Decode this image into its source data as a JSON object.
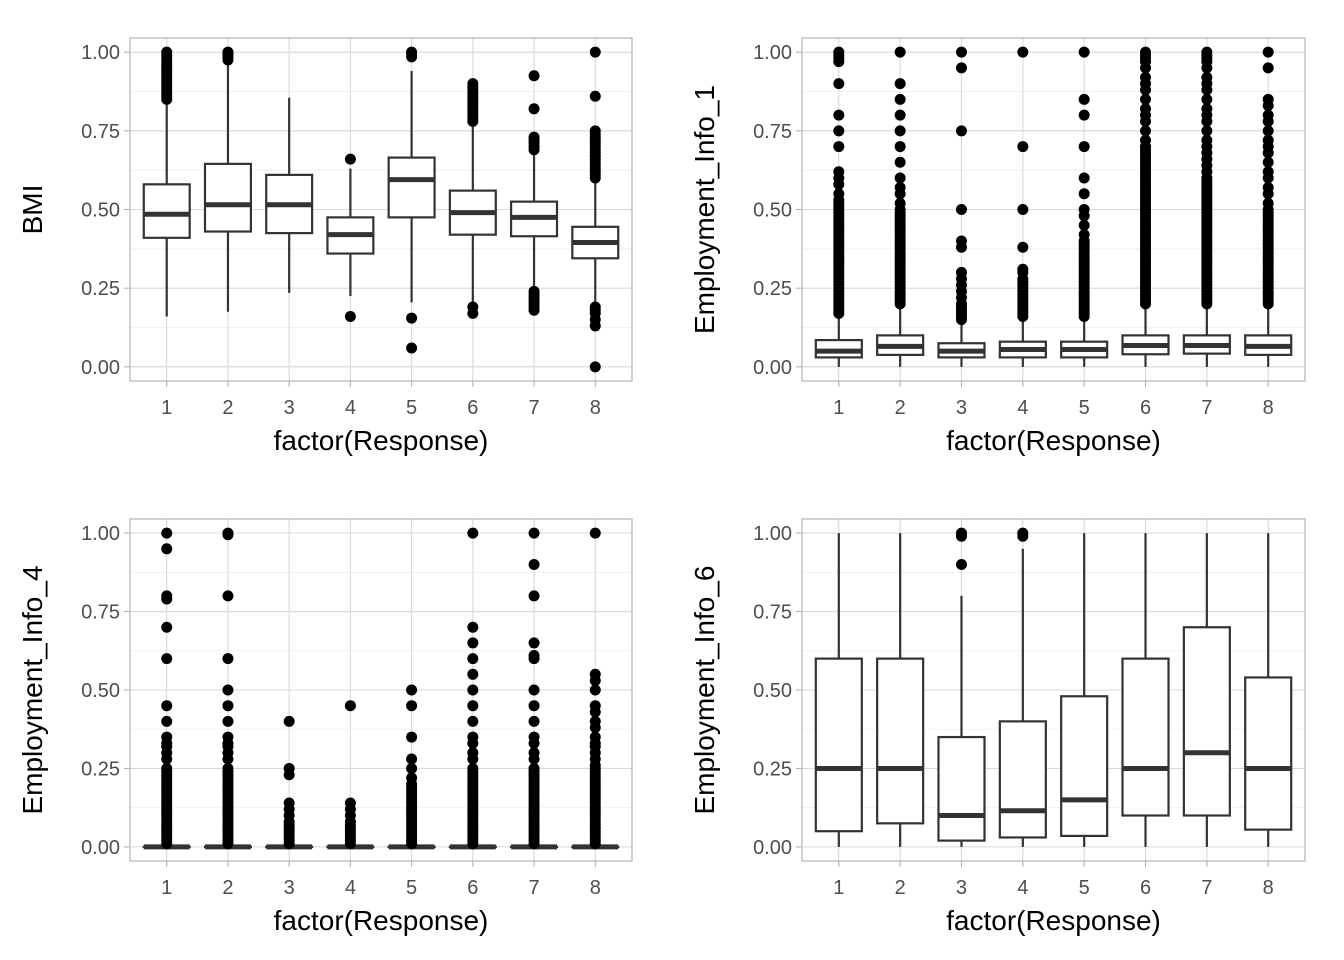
{
  "chart_data": [
    {
      "type": "box",
      "ylabel": "BMI",
      "xlabel": "factor(Response)",
      "categories": [
        "1",
        "2",
        "3",
        "4",
        "5",
        "6",
        "7",
        "8"
      ],
      "yticks": [
        "0.00",
        "0.25",
        "0.50",
        "0.75",
        "1.00"
      ],
      "ylim": [
        -0.045,
        1.045
      ],
      "grid": true,
      "boxes": [
        {
          "lower_whisker": 0.16,
          "q1": 0.41,
          "median": 0.485,
          "q3": 0.58,
          "upper_whisker": 0.84,
          "outliers": [
            0.85,
            0.86,
            0.87,
            0.88,
            0.89,
            0.9,
            0.91,
            0.92,
            0.93,
            0.94,
            0.95,
            0.96,
            0.97,
            0.98,
            0.99,
            1.0
          ]
        },
        {
          "lower_whisker": 0.175,
          "q1": 0.43,
          "median": 0.515,
          "q3": 0.645,
          "upper_whisker": 0.965,
          "outliers": [
            0.975,
            0.985,
            0.99,
            0.995,
            1.0
          ]
        },
        {
          "lower_whisker": 0.235,
          "q1": 0.425,
          "median": 0.515,
          "q3": 0.61,
          "upper_whisker": 0.855,
          "outliers": []
        },
        {
          "lower_whisker": 0.225,
          "q1": 0.36,
          "median": 0.42,
          "q3": 0.475,
          "upper_whisker": 0.63,
          "outliers": [
            0.16,
            0.66
          ]
        },
        {
          "lower_whisker": 0.205,
          "q1": 0.475,
          "median": 0.595,
          "q3": 0.665,
          "upper_whisker": 0.94,
          "outliers": [
            0.06,
            0.155,
            0.985,
            0.995,
            1.0
          ]
        },
        {
          "lower_whisker": 0.2,
          "q1": 0.42,
          "median": 0.49,
          "q3": 0.56,
          "upper_whisker": 0.765,
          "outliers": [
            0.17,
            0.19,
            0.78,
            0.79,
            0.8,
            0.81,
            0.82,
            0.83,
            0.84,
            0.85,
            0.86,
            0.87,
            0.88,
            0.89,
            0.9
          ]
        },
        {
          "lower_whisker": 0.25,
          "q1": 0.415,
          "median": 0.475,
          "q3": 0.525,
          "upper_whisker": 0.685,
          "outliers": [
            0.18,
            0.19,
            0.2,
            0.21,
            0.22,
            0.23,
            0.24,
            0.69,
            0.7,
            0.71,
            0.72,
            0.73,
            0.82,
            0.925
          ]
        },
        {
          "lower_whisker": 0.2,
          "q1": 0.345,
          "median": 0.395,
          "q3": 0.445,
          "upper_whisker": 0.595,
          "outliers": [
            0.0,
            0.13,
            0.15,
            0.17,
            0.18,
            0.19,
            0.6,
            0.61,
            0.62,
            0.63,
            0.64,
            0.65,
            0.66,
            0.67,
            0.68,
            0.69,
            0.7,
            0.71,
            0.72,
            0.73,
            0.74,
            0.75,
            0.86,
            1.0
          ]
        }
      ]
    },
    {
      "type": "box",
      "ylabel": "Employment_Info_1",
      "xlabel": "factor(Response)",
      "categories": [
        "1",
        "2",
        "3",
        "4",
        "5",
        "6",
        "7",
        "8"
      ],
      "yticks": [
        "0.00",
        "0.25",
        "0.50",
        "0.75",
        "1.00"
      ],
      "ylim": [
        -0.045,
        1.045
      ],
      "grid": true,
      "boxes": [
        {
          "lower_whisker": 0.0,
          "q1": 0.03,
          "median": 0.05,
          "q3": 0.085,
          "upper_whisker": 0.165,
          "outliers": [
            0.17,
            0.18,
            0.19,
            0.2,
            0.21,
            0.22,
            0.23,
            0.24,
            0.25,
            0.26,
            0.27,
            0.28,
            0.29,
            0.3,
            0.31,
            0.32,
            0.33,
            0.34,
            0.35,
            0.36,
            0.37,
            0.38,
            0.39,
            0.4,
            0.41,
            0.42,
            0.43,
            0.44,
            0.45,
            0.46,
            0.47,
            0.48,
            0.49,
            0.5,
            0.51,
            0.52,
            0.53,
            0.55,
            0.58,
            0.6,
            0.62,
            0.7,
            0.75,
            0.8,
            0.9,
            0.97,
            0.98,
            0.99,
            1.0
          ]
        },
        {
          "lower_whisker": 0.0,
          "q1": 0.038,
          "median": 0.065,
          "q3": 0.1,
          "upper_whisker": 0.19,
          "outliers": [
            0.2,
            0.21,
            0.22,
            0.23,
            0.24,
            0.25,
            0.26,
            0.27,
            0.28,
            0.29,
            0.3,
            0.31,
            0.32,
            0.33,
            0.34,
            0.35,
            0.36,
            0.37,
            0.38,
            0.39,
            0.4,
            0.41,
            0.42,
            0.43,
            0.44,
            0.45,
            0.46,
            0.47,
            0.48,
            0.49,
            0.5,
            0.52,
            0.55,
            0.57,
            0.6,
            0.65,
            0.7,
            0.75,
            0.8,
            0.85,
            0.9,
            1.0
          ]
        },
        {
          "lower_whisker": 0.0,
          "q1": 0.03,
          "median": 0.05,
          "q3": 0.075,
          "upper_whisker": 0.14,
          "outliers": [
            0.15,
            0.16,
            0.17,
            0.18,
            0.19,
            0.2,
            0.22,
            0.24,
            0.26,
            0.28,
            0.3,
            0.38,
            0.4,
            0.5,
            0.75,
            0.95,
            1.0
          ]
        },
        {
          "lower_whisker": 0.0,
          "q1": 0.03,
          "median": 0.055,
          "q3": 0.08,
          "upper_whisker": 0.15,
          "outliers": [
            0.16,
            0.17,
            0.18,
            0.19,
            0.2,
            0.21,
            0.22,
            0.23,
            0.24,
            0.25,
            0.26,
            0.27,
            0.28,
            0.3,
            0.31,
            0.38,
            0.5,
            0.7,
            1.0
          ]
        },
        {
          "lower_whisker": 0.0,
          "q1": 0.03,
          "median": 0.055,
          "q3": 0.08,
          "upper_whisker": 0.155,
          "outliers": [
            0.16,
            0.17,
            0.18,
            0.19,
            0.2,
            0.21,
            0.22,
            0.23,
            0.24,
            0.25,
            0.26,
            0.27,
            0.28,
            0.29,
            0.3,
            0.31,
            0.32,
            0.33,
            0.34,
            0.35,
            0.36,
            0.37,
            0.38,
            0.39,
            0.4,
            0.42,
            0.45,
            0.48,
            0.5,
            0.55,
            0.6,
            0.7,
            0.8,
            0.85,
            1.0
          ]
        },
        {
          "lower_whisker": 0.0,
          "q1": 0.04,
          "median": 0.068,
          "q3": 0.1,
          "upper_whisker": 0.19,
          "outliers": [
            0.2,
            0.21,
            0.22,
            0.23,
            0.24,
            0.25,
            0.26,
            0.27,
            0.28,
            0.29,
            0.3,
            0.31,
            0.32,
            0.33,
            0.34,
            0.35,
            0.36,
            0.37,
            0.38,
            0.39,
            0.4,
            0.41,
            0.42,
            0.43,
            0.44,
            0.45,
            0.46,
            0.47,
            0.48,
            0.49,
            0.5,
            0.51,
            0.52,
            0.53,
            0.54,
            0.55,
            0.56,
            0.57,
            0.58,
            0.59,
            0.6,
            0.61,
            0.62,
            0.63,
            0.64,
            0.65,
            0.66,
            0.67,
            0.68,
            0.69,
            0.7,
            0.72,
            0.75,
            0.78,
            0.8,
            0.82,
            0.85,
            0.88,
            0.9,
            0.92,
            0.95,
            0.97,
            0.98,
            0.99,
            1.0
          ]
        },
        {
          "lower_whisker": 0.0,
          "q1": 0.042,
          "median": 0.068,
          "q3": 0.1,
          "upper_whisker": 0.19,
          "outliers": [
            0.2,
            0.21,
            0.22,
            0.23,
            0.24,
            0.25,
            0.26,
            0.27,
            0.28,
            0.29,
            0.3,
            0.31,
            0.32,
            0.33,
            0.34,
            0.35,
            0.36,
            0.37,
            0.38,
            0.39,
            0.4,
            0.41,
            0.42,
            0.43,
            0.44,
            0.45,
            0.46,
            0.47,
            0.48,
            0.49,
            0.5,
            0.51,
            0.52,
            0.53,
            0.54,
            0.55,
            0.56,
            0.57,
            0.58,
            0.59,
            0.6,
            0.62,
            0.64,
            0.66,
            0.68,
            0.7,
            0.72,
            0.75,
            0.78,
            0.8,
            0.82,
            0.85,
            0.88,
            0.9,
            0.92,
            0.95,
            0.97,
            0.98,
            0.99,
            1.0
          ]
        },
        {
          "lower_whisker": 0.0,
          "q1": 0.038,
          "median": 0.065,
          "q3": 0.1,
          "upper_whisker": 0.19,
          "outliers": [
            0.2,
            0.21,
            0.22,
            0.23,
            0.24,
            0.25,
            0.26,
            0.27,
            0.28,
            0.29,
            0.3,
            0.31,
            0.32,
            0.33,
            0.34,
            0.35,
            0.36,
            0.37,
            0.38,
            0.39,
            0.4,
            0.41,
            0.42,
            0.43,
            0.44,
            0.45,
            0.46,
            0.47,
            0.48,
            0.49,
            0.5,
            0.52,
            0.55,
            0.57,
            0.6,
            0.62,
            0.65,
            0.68,
            0.7,
            0.72,
            0.75,
            0.78,
            0.8,
            0.83,
            0.85,
            0.95,
            1.0
          ]
        }
      ]
    },
    {
      "type": "box",
      "ylabel": "Employment_Info_4",
      "xlabel": "factor(Response)",
      "categories": [
        "1",
        "2",
        "3",
        "4",
        "5",
        "6",
        "7",
        "8"
      ],
      "yticks": [
        "0.00",
        "0.25",
        "0.50",
        "0.75",
        "1.00"
      ],
      "ylim": [
        -0.045,
        1.045
      ],
      "grid": true,
      "boxes": [
        {
          "lower_whisker": 0.0,
          "q1": 0.0,
          "median": 0.0,
          "q3": 0.0,
          "upper_whisker": 0.0,
          "outliers": [
            0.01,
            0.02,
            0.03,
            0.04,
            0.05,
            0.06,
            0.07,
            0.08,
            0.09,
            0.1,
            0.11,
            0.12,
            0.13,
            0.14,
            0.15,
            0.16,
            0.17,
            0.18,
            0.19,
            0.2,
            0.21,
            0.22,
            0.23,
            0.24,
            0.25,
            0.28,
            0.3,
            0.32,
            0.33,
            0.35,
            0.4,
            0.45,
            0.6,
            0.7,
            0.79,
            0.8,
            0.95,
            1.0
          ]
        },
        {
          "lower_whisker": 0.0,
          "q1": 0.0,
          "median": 0.0,
          "q3": 0.0,
          "upper_whisker": 0.0,
          "outliers": [
            0.01,
            0.02,
            0.03,
            0.04,
            0.05,
            0.06,
            0.07,
            0.08,
            0.09,
            0.1,
            0.11,
            0.12,
            0.13,
            0.14,
            0.15,
            0.16,
            0.17,
            0.18,
            0.19,
            0.2,
            0.21,
            0.22,
            0.23,
            0.24,
            0.25,
            0.28,
            0.3,
            0.32,
            0.33,
            0.35,
            0.4,
            0.45,
            0.5,
            0.6,
            0.8,
            0.995,
            1.0
          ]
        },
        {
          "lower_whisker": 0.0,
          "q1": 0.0,
          "median": 0.0,
          "q3": 0.0,
          "upper_whisker": 0.0,
          "outliers": [
            0.01,
            0.02,
            0.03,
            0.04,
            0.05,
            0.06,
            0.07,
            0.08,
            0.1,
            0.12,
            0.14,
            0.23,
            0.25,
            0.4
          ]
        },
        {
          "lower_whisker": 0.0,
          "q1": 0.0,
          "median": 0.0,
          "q3": 0.0,
          "upper_whisker": 0.0,
          "outliers": [
            0.01,
            0.02,
            0.03,
            0.04,
            0.05,
            0.06,
            0.07,
            0.08,
            0.1,
            0.12,
            0.14,
            0.45
          ]
        },
        {
          "lower_whisker": 0.0,
          "q1": 0.0,
          "median": 0.0,
          "q3": 0.0,
          "upper_whisker": 0.0,
          "outliers": [
            0.01,
            0.02,
            0.03,
            0.04,
            0.05,
            0.06,
            0.07,
            0.08,
            0.09,
            0.1,
            0.11,
            0.12,
            0.13,
            0.14,
            0.15,
            0.16,
            0.17,
            0.18,
            0.19,
            0.2,
            0.22,
            0.25,
            0.28,
            0.35,
            0.45,
            0.5
          ]
        },
        {
          "lower_whisker": 0.0,
          "q1": 0.0,
          "median": 0.0,
          "q3": 0.0,
          "upper_whisker": 0.0,
          "outliers": [
            0.01,
            0.02,
            0.03,
            0.04,
            0.05,
            0.06,
            0.07,
            0.08,
            0.09,
            0.1,
            0.11,
            0.12,
            0.13,
            0.14,
            0.15,
            0.16,
            0.17,
            0.18,
            0.19,
            0.2,
            0.21,
            0.22,
            0.23,
            0.24,
            0.25,
            0.28,
            0.3,
            0.33,
            0.35,
            0.4,
            0.45,
            0.5,
            0.55,
            0.6,
            0.65,
            0.7,
            1.0
          ]
        },
        {
          "lower_whisker": 0.0,
          "q1": 0.0,
          "median": 0.0,
          "q3": 0.0,
          "upper_whisker": 0.0,
          "outliers": [
            0.01,
            0.02,
            0.03,
            0.04,
            0.05,
            0.06,
            0.07,
            0.08,
            0.09,
            0.1,
            0.11,
            0.12,
            0.13,
            0.14,
            0.15,
            0.16,
            0.17,
            0.18,
            0.19,
            0.2,
            0.21,
            0.22,
            0.23,
            0.24,
            0.25,
            0.28,
            0.3,
            0.33,
            0.35,
            0.4,
            0.45,
            0.5,
            0.6,
            0.61,
            0.65,
            0.8,
            0.9,
            1.0
          ]
        },
        {
          "lower_whisker": 0.0,
          "q1": 0.0,
          "median": 0.0,
          "q3": 0.0,
          "upper_whisker": 0.0,
          "outliers": [
            0.01,
            0.02,
            0.03,
            0.04,
            0.05,
            0.06,
            0.07,
            0.08,
            0.09,
            0.1,
            0.11,
            0.12,
            0.13,
            0.14,
            0.15,
            0.16,
            0.17,
            0.18,
            0.19,
            0.2,
            0.21,
            0.22,
            0.23,
            0.24,
            0.25,
            0.26,
            0.28,
            0.3,
            0.32,
            0.33,
            0.35,
            0.38,
            0.4,
            0.43,
            0.45,
            0.5,
            0.53,
            0.55,
            1.0
          ]
        }
      ]
    },
    {
      "type": "box",
      "ylabel": "Employment_Info_6",
      "xlabel": "factor(Response)",
      "categories": [
        "1",
        "2",
        "3",
        "4",
        "5",
        "6",
        "7",
        "8"
      ],
      "yticks": [
        "0.00",
        "0.25",
        "0.50",
        "0.75",
        "1.00"
      ],
      "ylim": [
        -0.045,
        1.045
      ],
      "grid": true,
      "boxes": [
        {
          "lower_whisker": 0.0,
          "q1": 0.05,
          "median": 0.25,
          "q3": 0.6,
          "upper_whisker": 1.0,
          "outliers": []
        },
        {
          "lower_whisker": 0.0,
          "q1": 0.075,
          "median": 0.25,
          "q3": 0.6,
          "upper_whisker": 1.0,
          "outliers": []
        },
        {
          "lower_whisker": 0.0,
          "q1": 0.02,
          "median": 0.1,
          "q3": 0.35,
          "upper_whisker": 0.8,
          "outliers": [
            0.9,
            0.99,
            1.0
          ]
        },
        {
          "lower_whisker": 0.0,
          "q1": 0.03,
          "median": 0.115,
          "q3": 0.4,
          "upper_whisker": 0.95,
          "outliers": [
            0.99,
            1.0
          ]
        },
        {
          "lower_whisker": 0.0,
          "q1": 0.035,
          "median": 0.15,
          "q3": 0.48,
          "upper_whisker": 1.0,
          "outliers": []
        },
        {
          "lower_whisker": 0.0,
          "q1": 0.1,
          "median": 0.25,
          "q3": 0.6,
          "upper_whisker": 1.0,
          "outliers": []
        },
        {
          "lower_whisker": 0.0,
          "q1": 0.1,
          "median": 0.3,
          "q3": 0.7,
          "upper_whisker": 1.0,
          "outliers": []
        },
        {
          "lower_whisker": 0.0,
          "q1": 0.055,
          "median": 0.25,
          "q3": 0.54,
          "upper_whisker": 1.0,
          "outliers": []
        }
      ]
    }
  ]
}
